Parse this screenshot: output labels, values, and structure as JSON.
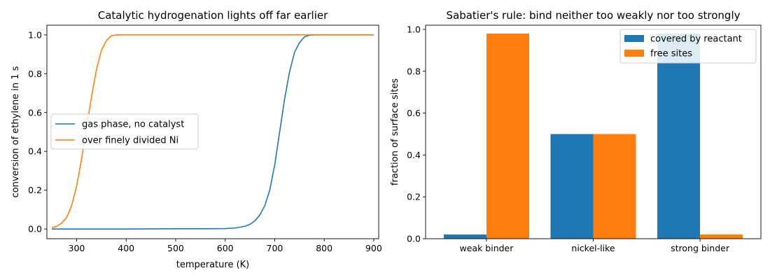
{
  "chart_data": [
    {
      "type": "line",
      "title": "Catalytic hydrogenation lights off far earlier",
      "xlabel": "temperature (K)",
      "ylabel": "conversion of ethylene in 1 s",
      "xlim": [
        240,
        910
      ],
      "ylim": [
        -0.05,
        1.05
      ],
      "x_ticks": [
        "300",
        "400",
        "500",
        "600",
        "700",
        "800",
        "900"
      ],
      "y_ticks": [
        "0.0",
        "0.2",
        "0.4",
        "0.6",
        "0.8",
        "1.0"
      ],
      "legend_position": "center-left",
      "grid": false,
      "series": [
        {
          "name": "gas phase, no catalyst",
          "color": "#1f77b4",
          "x": [
            250,
            300,
            400,
            500,
            550,
            600,
            620,
            640,
            650,
            660,
            670,
            680,
            690,
            700,
            710,
            720,
            730,
            740,
            750,
            760,
            770,
            780,
            800,
            900
          ],
          "y": [
            0.0,
            0.0,
            0.0,
            0.001,
            0.001,
            0.002,
            0.005,
            0.014,
            0.024,
            0.042,
            0.072,
            0.12,
            0.2,
            0.33,
            0.5,
            0.67,
            0.81,
            0.91,
            0.96,
            0.99,
            0.998,
            1.0,
            1.0,
            1.0
          ]
        },
        {
          "name": "over finely divided Ni",
          "color": "#ff7f0e",
          "x": [
            250,
            260,
            270,
            280,
            290,
            300,
            310,
            320,
            330,
            340,
            350,
            360,
            370,
            380,
            400,
            500,
            600,
            700,
            800,
            900
          ],
          "y": [
            0.006,
            0.014,
            0.03,
            0.06,
            0.12,
            0.22,
            0.36,
            0.52,
            0.68,
            0.82,
            0.92,
            0.97,
            0.995,
            1.0,
            1.0,
            1.0,
            1.0,
            1.0,
            1.0,
            1.0
          ]
        }
      ]
    },
    {
      "type": "bar",
      "title": "Sabatier's rule: bind neither too weakly nor too strongly",
      "xlabel": "",
      "ylabel": "fraction of surface sites",
      "categories": [
        "weak binder",
        "nickel-like",
        "strong binder"
      ],
      "ylim": [
        0,
        1.02
      ],
      "y_ticks": [
        "0.0",
        "0.2",
        "0.4",
        "0.6",
        "0.8",
        "1.0"
      ],
      "legend_position": "top-right",
      "grid": false,
      "series": [
        {
          "name": "covered by reactant",
          "color": "#1f77b4",
          "values": [
            0.02,
            0.5,
            0.98
          ]
        },
        {
          "name": "free sites",
          "color": "#ff7f0e",
          "values": [
            0.98,
            0.5,
            0.02
          ]
        }
      ]
    }
  ]
}
